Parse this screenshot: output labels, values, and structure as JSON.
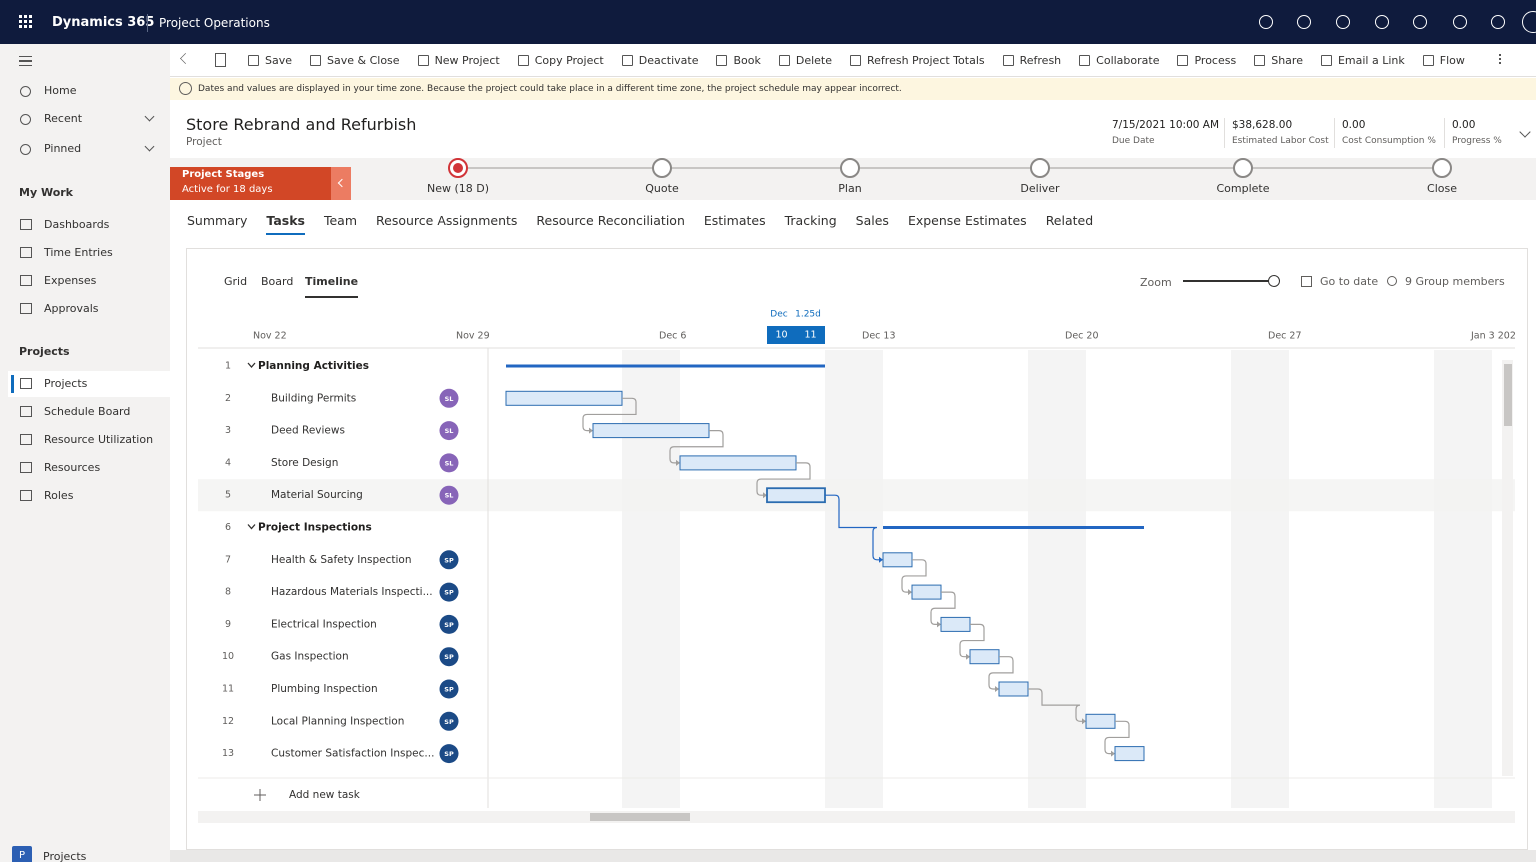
{
  "header": {
    "app": "Dynamics 365",
    "area": "Project Operations"
  },
  "commands": [
    "Save",
    "Save & Close",
    "New Project",
    "Copy Project",
    "Deactivate",
    "Book",
    "Delete",
    "Refresh Project Totals",
    "Refresh",
    "Collaborate",
    "Process",
    "Share",
    "Email a Link",
    "Flow"
  ],
  "notice": "Dates and values are displayed in your time zone. Because the project could take place in a different time zone, the project schedule may appear incorrect.",
  "nav": {
    "top": [
      "Home",
      "Recent",
      "Pinned"
    ],
    "sections": [
      {
        "title": "My Work",
        "items": [
          "Dashboards",
          "Time Entries",
          "Expenses",
          "Approvals"
        ]
      },
      {
        "title": "Projects",
        "items": [
          "Projects",
          "Schedule Board",
          "Resource Utilization",
          "Resources",
          "Roles"
        ]
      }
    ],
    "active": {
      "section": 1,
      "item": 0
    },
    "area_switcher": {
      "icon": "P",
      "label": "Projects"
    }
  },
  "record": {
    "title": "Store Rebrand and Refurbish",
    "type": "Project",
    "fields": [
      {
        "value": "7/15/2021 10:00 AM",
        "label": "Due Date"
      },
      {
        "value": "$38,628.00",
        "label": "Estimated Labor Cost"
      },
      {
        "value": "0.00",
        "label": "Cost Consumption %"
      },
      {
        "value": "0.00",
        "label": "Progress %"
      }
    ]
  },
  "stages": {
    "title": "Project Stages",
    "subtitle": "Active for 18 days",
    "items": [
      "New  (18 D)",
      "Quote",
      "Plan",
      "Deliver",
      "Complete",
      "Close"
    ],
    "active": 0
  },
  "tabs": [
    "Summary",
    "Tasks",
    "Team",
    "Resource Assignments",
    "Resource Reconciliation",
    "Estimates",
    "Tracking",
    "Sales",
    "Expense Estimates",
    "Related"
  ],
  "active_tab": 1,
  "views": [
    "Grid",
    "Board",
    "Timeline"
  ],
  "active_view": 2,
  "toolbar": {
    "zoom": "Zoom",
    "go_to_date": "Go to date",
    "members": "9 Group members"
  },
  "timeline": {
    "date_ticks": [
      {
        "value": 0,
        "label": "Nov 22"
      },
      {
        "value": 7,
        "label": "Nov 29"
      },
      {
        "value": 14,
        "label": "Dec 6"
      },
      {
        "value": 21,
        "label": "Dec 13"
      },
      {
        "value": 28,
        "label": "Dec 20"
      },
      {
        "value": 35,
        "label": "Dec 27"
      },
      {
        "value": 42,
        "label": "Jan 3 202"
      }
    ],
    "selection": {
      "month": "Dec",
      "duration": "1.25d",
      "days": [
        "10",
        "11"
      ],
      "start": 18,
      "end": 20
    }
  },
  "assignee_colors": {
    "SL": "#8764b8",
    "SP": "#1b4a86"
  },
  "selected_task": 4,
  "tasks": [
    {
      "id": "1",
      "name": "Planning Activities",
      "summary": true,
      "start": 9,
      "end": 20
    },
    {
      "id": "2",
      "name": "Building Permits",
      "assignee": "SL",
      "start": 9,
      "end": 13
    },
    {
      "id": "3",
      "name": "Deed Reviews",
      "assignee": "SL",
      "start": 12,
      "end": 16
    },
    {
      "id": "4",
      "name": "Store Design",
      "assignee": "SL",
      "start": 15,
      "end": 19
    },
    {
      "id": "5",
      "name": "Material Sourcing",
      "assignee": "SL",
      "start": 18,
      "end": 20
    },
    {
      "id": "6",
      "name": "Project Inspections",
      "summary": true,
      "start": 22,
      "end": 31
    },
    {
      "id": "7",
      "name": "Health & Safety Inspection",
      "assignee": "SP",
      "start": 22,
      "end": 23
    },
    {
      "id": "8",
      "name": "Hazardous Materials Inspecti...",
      "assignee": "SP",
      "start": 23,
      "end": 24
    },
    {
      "id": "9",
      "name": "Electrical Inspection",
      "assignee": "SP",
      "start": 24,
      "end": 25
    },
    {
      "id": "10",
      "name": "Gas Inspection",
      "assignee": "SP",
      "start": 25,
      "end": 26
    },
    {
      "id": "11",
      "name": "Plumbing Inspection",
      "assignee": "SP",
      "start": 26,
      "end": 27
    },
    {
      "id": "12",
      "name": "Local Planning Inspection",
      "assignee": "SP",
      "start": 29,
      "end": 30
    },
    {
      "id": "13",
      "name": "Customer Satisfaction Inspec...",
      "assignee": "SP",
      "start": 30,
      "end": 31
    }
  ],
  "add_task": "Add new task"
}
